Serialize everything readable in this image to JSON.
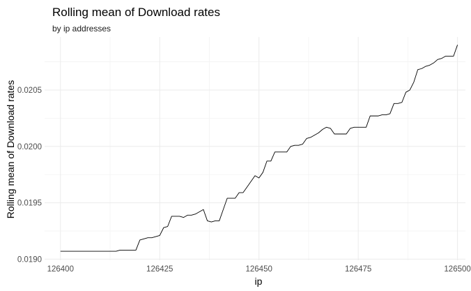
{
  "chart_data": {
    "type": "line",
    "title": "Rolling mean of Download rates",
    "subtitle": "by ip addresses",
    "xlabel": "ip",
    "ylabel": "Rolling mean of Download rates",
    "xlim": [
      126396,
      126502
    ],
    "ylim": [
      0.01899,
      0.02097
    ],
    "x_ticks": [
      126400,
      126425,
      126450,
      126475,
      126500
    ],
    "x_tick_labels": [
      "126400",
      "126425",
      "126450",
      "126475",
      "126500"
    ],
    "y_ticks": [
      0.019,
      0.0195,
      0.02,
      0.0205
    ],
    "y_tick_labels": [
      "0.0190",
      "0.0195",
      "0.0200",
      "0.0205"
    ],
    "grid": true,
    "legend": "none",
    "line_color": "#000000",
    "series": [
      {
        "x": [
          126400,
          126401,
          126402,
          126403,
          126404,
          126405,
          126406,
          126407,
          126408,
          126409,
          126410,
          126411,
          126412,
          126413,
          126414,
          126415,
          126416,
          126417,
          126418,
          126419,
          126420,
          126421,
          126422,
          126423,
          126424,
          126425,
          126426,
          126427,
          126428,
          126429,
          126430,
          126431,
          126432,
          126433,
          126434,
          126435,
          126436,
          126437,
          126438,
          126439,
          126440,
          126441,
          126442,
          126443,
          126444,
          126445,
          126446,
          126447,
          126448,
          126449,
          126450,
          126451,
          126452,
          126453,
          126454,
          126455,
          126456,
          126457,
          126458,
          126459,
          126460,
          126461,
          126462,
          126463,
          126464,
          126465,
          126466,
          126467,
          126468,
          126469,
          126470,
          126471,
          126472,
          126473,
          126474,
          126475,
          126476,
          126477,
          126478,
          126479,
          126480,
          126481,
          126482,
          126483,
          126484,
          126485,
          126486,
          126487,
          126488,
          126489,
          126490,
          126491,
          126492,
          126493,
          126494,
          126495,
          126496,
          126497,
          126498,
          126499,
          126500
        ],
        "y": [
          0.01907,
          0.01907,
          0.01907,
          0.01907,
          0.01907,
          0.01907,
          0.01907,
          0.01907,
          0.01907,
          0.01907,
          0.01907,
          0.01907,
          0.01907,
          0.01907,
          0.01907,
          0.01908,
          0.01908,
          0.01908,
          0.01908,
          0.01908,
          0.01917,
          0.01918,
          0.01919,
          0.01919,
          0.0192,
          0.01921,
          0.01928,
          0.01929,
          0.01938,
          0.01938,
          0.01938,
          0.01937,
          0.01939,
          0.01939,
          0.0194,
          0.01942,
          0.01944,
          0.01934,
          0.01933,
          0.01934,
          0.01934,
          0.01944,
          0.01954,
          0.01954,
          0.01954,
          0.01959,
          0.01959,
          0.01964,
          0.01969,
          0.01974,
          0.01972,
          0.01977,
          0.01987,
          0.01987,
          0.01995,
          0.01995,
          0.01995,
          0.01995,
          0.02,
          0.02001,
          0.02001,
          0.02002,
          0.02007,
          0.02008,
          0.0201,
          0.02012,
          0.02015,
          0.02017,
          0.02016,
          0.02011,
          0.02011,
          0.02011,
          0.02011,
          0.02016,
          0.02017,
          0.02017,
          0.02017,
          0.02017,
          0.02027,
          0.02027,
          0.02027,
          0.02028,
          0.02028,
          0.02029,
          0.02038,
          0.02038,
          0.02039,
          0.02048,
          0.0205,
          0.02057,
          0.02068,
          0.02069,
          0.02071,
          0.02072,
          0.02074,
          0.02077,
          0.02078,
          0.0208,
          0.0208,
          0.0208,
          0.0209
        ]
      }
    ]
  }
}
